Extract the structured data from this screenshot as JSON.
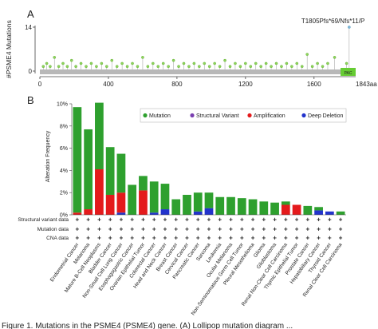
{
  "chart_data": [
    {
      "type": "lollipop",
      "panel_label": "A",
      "ylabel": "#PSME4 Mutations",
      "ylim": [
        0,
        14
      ],
      "yticks": [
        0,
        14
      ],
      "xticks": [
        0,
        400,
        800,
        1200,
        1600
      ],
      "x_end_label": "1843aa",
      "protein_length": 1843,
      "domain": {
        "label": "PAC",
        "start": 1755,
        "end": 1843,
        "color": "#66cc33"
      },
      "annotation": {
        "text": "T1805Pfs*69/Nfs*11/P",
        "position": 1805,
        "count": 14
      },
      "mutations": [
        {
          "pos": 20,
          "count": 1
        },
        {
          "pos": 40,
          "count": 2
        },
        {
          "pos": 60,
          "count": 1
        },
        {
          "pos": 85,
          "count": 4
        },
        {
          "pos": 110,
          "count": 1
        },
        {
          "pos": 135,
          "count": 2
        },
        {
          "pos": 160,
          "count": 1
        },
        {
          "pos": 185,
          "count": 3
        },
        {
          "pos": 210,
          "count": 1
        },
        {
          "pos": 240,
          "count": 2
        },
        {
          "pos": 270,
          "count": 1
        },
        {
          "pos": 300,
          "count": 2
        },
        {
          "pos": 330,
          "count": 1
        },
        {
          "pos": 360,
          "count": 2
        },
        {
          "pos": 390,
          "count": 1
        },
        {
          "pos": 420,
          "count": 3
        },
        {
          "pos": 450,
          "count": 1
        },
        {
          "pos": 480,
          "count": 2
        },
        {
          "pos": 510,
          "count": 1
        },
        {
          "pos": 540,
          "count": 2
        },
        {
          "pos": 570,
          "count": 1
        },
        {
          "pos": 600,
          "count": 4
        },
        {
          "pos": 630,
          "count": 1
        },
        {
          "pos": 660,
          "count": 2
        },
        {
          "pos": 690,
          "count": 1
        },
        {
          "pos": 720,
          "count": 2
        },
        {
          "pos": 750,
          "count": 1
        },
        {
          "pos": 780,
          "count": 3
        },
        {
          "pos": 810,
          "count": 1
        },
        {
          "pos": 840,
          "count": 2
        },
        {
          "pos": 870,
          "count": 1
        },
        {
          "pos": 900,
          "count": 2
        },
        {
          "pos": 930,
          "count": 1
        },
        {
          "pos": 960,
          "count": 2
        },
        {
          "pos": 990,
          "count": 1
        },
        {
          "pos": 1020,
          "count": 2
        },
        {
          "pos": 1050,
          "count": 1
        },
        {
          "pos": 1080,
          "count": 3
        },
        {
          "pos": 1110,
          "count": 1
        },
        {
          "pos": 1140,
          "count": 2
        },
        {
          "pos": 1170,
          "count": 1
        },
        {
          "pos": 1200,
          "count": 2
        },
        {
          "pos": 1230,
          "count": 1
        },
        {
          "pos": 1260,
          "count": 2
        },
        {
          "pos": 1290,
          "count": 1
        },
        {
          "pos": 1320,
          "count": 2
        },
        {
          "pos": 1350,
          "count": 1
        },
        {
          "pos": 1380,
          "count": 2
        },
        {
          "pos": 1410,
          "count": 1
        },
        {
          "pos": 1440,
          "count": 2
        },
        {
          "pos": 1470,
          "count": 1
        },
        {
          "pos": 1500,
          "count": 2
        },
        {
          "pos": 1530,
          "count": 1
        },
        {
          "pos": 1560,
          "count": 5
        },
        {
          "pos": 1590,
          "count": 1
        },
        {
          "pos": 1620,
          "count": 2
        },
        {
          "pos": 1650,
          "count": 1
        },
        {
          "pos": 1680,
          "count": 2
        },
        {
          "pos": 1720,
          "count": 4
        },
        {
          "pos": 1790,
          "count": 2
        },
        {
          "pos": 1805,
          "count": 14
        }
      ]
    },
    {
      "type": "stacked-bar",
      "panel_label": "B",
      "ylabel": "Alteration Frequency",
      "ylim": [
        0,
        10
      ],
      "yticks": [
        "0%",
        "2%",
        "4%",
        "6%",
        "8%",
        "10%"
      ],
      "legend": [
        {
          "label": "Mutation",
          "color": "#2ea02e"
        },
        {
          "label": "Structural Variant",
          "color": "#7a3fb0"
        },
        {
          "label": "Amplification",
          "color": "#e41a1c"
        },
        {
          "label": "Deep Deletion",
          "color": "#2233cc"
        }
      ],
      "legend_position": "top-right",
      "categories": [
        "Endometrial Cancer",
        "Melanoma",
        "Mature B-Cell Neoplasms",
        "Bladder Cancer",
        "Non-Small Cell Lung Cancer",
        "Esophagogastric Cancer",
        "Ovarian Epithelial Tumor",
        "Colorectal Cancer",
        "Head and Neck Cancer",
        "Breast Cancer",
        "Cervical Cancer",
        "Pancreatic Cancer",
        "Sarcoma",
        "Leukemia",
        "Ocular Melanoma",
        "Non-Seminomatous Germ Cell Tumor",
        "Pleural Mesothelioma",
        "Glioma",
        "Glioblastoma",
        "Renal Non-Clear Cell Carcinoma",
        "Thymic Epithelial Tumor",
        "Prostate Cancer",
        "Hepatobiliary Cancer",
        "Thyroid Cancer",
        "Renal Clear Cell Carcinoma"
      ],
      "series": [
        {
          "name": "Mutation",
          "values": [
            9.5,
            7.2,
            6.0,
            4.3,
            3.5,
            2.7,
            1.3,
            2.8,
            2.3,
            1.4,
            1.8,
            1.7,
            1.4,
            1.6,
            1.6,
            1.5,
            1.4,
            1.2,
            1.1,
            0.3,
            0.0,
            0.8,
            0.3,
            0.0,
            0.3
          ]
        },
        {
          "name": "Structural Variant",
          "values": [
            0,
            0,
            0,
            0,
            0,
            0,
            0,
            0,
            0,
            0,
            0,
            0,
            0,
            0,
            0,
            0,
            0,
            0,
            0,
            0,
            0,
            0,
            0,
            0,
            0
          ]
        },
        {
          "name": "Amplification",
          "values": [
            0.2,
            0.5,
            4.1,
            1.8,
            1.8,
            0,
            2.2,
            0,
            0,
            0,
            0,
            0,
            0,
            0,
            0,
            0,
            0,
            0,
            0,
            0.9,
            0.9,
            0,
            0,
            0,
            0
          ]
        },
        {
          "name": "Deep Deletion",
          "values": [
            0,
            0,
            0,
            0,
            0.2,
            0,
            0,
            0.2,
            0.5,
            0,
            0,
            0.3,
            0.6,
            0,
            0,
            0,
            0,
            0,
            0,
            0,
            0,
            0,
            0.4,
            0.3,
            0
          ]
        }
      ],
      "row_labels": [
        "Structural variant data",
        "Mutation data",
        "CNA data"
      ],
      "row_marker": "+"
    }
  ],
  "caption": "Figure 1. Mutations in the PSME4 (PSME4) gene. (A) Lollipop mutation diagram ..."
}
